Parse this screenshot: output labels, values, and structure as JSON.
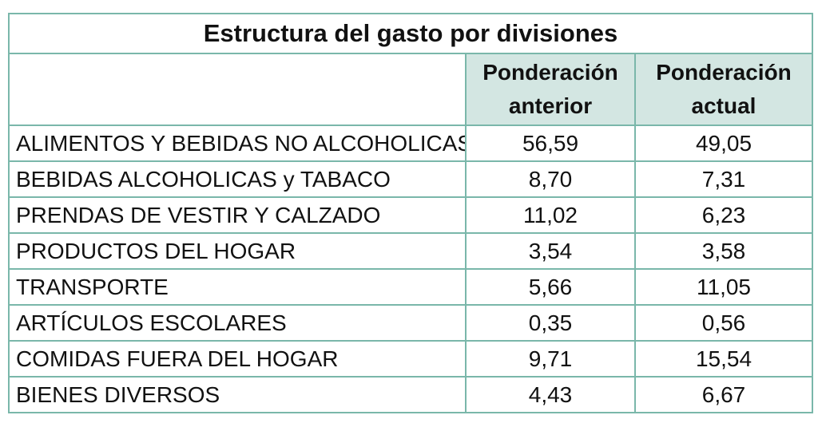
{
  "table": {
    "title": "Estructura del gasto por divisiones",
    "columns": [
      "",
      "Ponderación anterior",
      "Ponderación actual"
    ],
    "column_lines": [
      [],
      [
        "Ponderación",
        "anterior"
      ],
      [
        "Ponderación",
        "actual"
      ]
    ],
    "rows": [
      {
        "division": "ALIMENTOS Y BEBIDAS NO ALCOHOLICAS",
        "anterior": "56,59",
        "actual": "49,05"
      },
      {
        "division": "BEBIDAS ALCOHOLICAS y TABACO",
        "anterior": "8,70",
        "actual": "7,31"
      },
      {
        "division": "PRENDAS DE VESTIR Y CALZADO",
        "anterior": "11,02",
        "actual": "6,23"
      },
      {
        "division": "PRODUCTOS DEL HOGAR",
        "anterior": "3,54",
        "actual": "3,58"
      },
      {
        "division": "TRANSPORTE",
        "anterior": "5,66",
        "actual": "11,05"
      },
      {
        "division": "ARTÍCULOS ESCOLARES",
        "anterior": "0,35",
        "actual": "0,56"
      },
      {
        "division": "COMIDAS FUERA DEL HOGAR",
        "anterior": "9,71",
        "actual": "15,54"
      },
      {
        "division": "BIENES DIVERSOS",
        "anterior": "4,43",
        "actual": "6,67"
      }
    ]
  },
  "colors": {
    "border": "#7ab7aa",
    "header_fill": "#d3e6e2"
  }
}
